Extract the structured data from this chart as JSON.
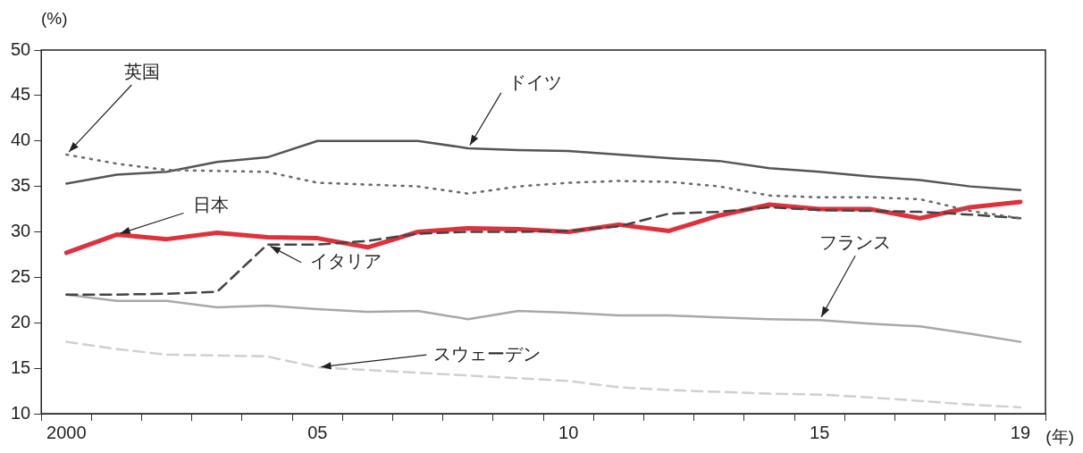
{
  "chart_data": {
    "type": "line",
    "ylabel": "(%)",
    "xlabel": "(年)",
    "categories": [
      "2000",
      null,
      null,
      null,
      null,
      "05",
      null,
      null,
      null,
      null,
      "10",
      null,
      null,
      null,
      null,
      "15",
      null,
      null,
      null,
      "19"
    ],
    "ylim": [
      10,
      50
    ],
    "yticks": [
      10,
      15,
      20,
      25,
      30,
      35,
      40,
      45,
      50
    ],
    "grid": false,
    "legend": false,
    "marker": "none",
    "series": [
      {
        "name": "英国",
        "color": "#6a6a6a",
        "line_style": "dotted",
        "values": [
          38.5,
          37.5,
          36.8,
          36.7,
          36.6,
          35.4,
          35.2,
          35.0,
          34.2,
          35.0,
          35.4,
          35.6,
          35.5,
          35.0,
          34.0,
          33.8,
          33.8,
          33.6,
          32.3,
          31.5
        ]
      },
      {
        "name": "ドイツ",
        "color": "#555555",
        "line_style": "solid",
        "values": [
          35.3,
          36.3,
          36.6,
          37.7,
          38.2,
          40.0,
          40.0,
          40.0,
          39.2,
          39.0,
          38.9,
          38.5,
          38.1,
          37.8,
          37.0,
          36.6,
          36.1,
          35.7,
          35.0,
          34.6
        ]
      },
      {
        "name": "日本",
        "color": "#e0303c",
        "line_style": "solid",
        "values": [
          27.7,
          29.7,
          29.2,
          29.9,
          29.4,
          29.3,
          28.3,
          30.0,
          30.4,
          30.3,
          30.0,
          30.8,
          30.1,
          31.8,
          33.0,
          32.5,
          32.5,
          31.5,
          32.7,
          33.3
        ]
      },
      {
        "name": "イタリア",
        "color": "#444444",
        "line_style": "dashed",
        "values": [
          23.1,
          23.1,
          23.2,
          23.4,
          28.6,
          28.6,
          29.0,
          29.8,
          30.0,
          30.0,
          30.1,
          30.6,
          32.0,
          32.2,
          32.7,
          32.4,
          32.3,
          32.2,
          31.9,
          31.5
        ]
      },
      {
        "name": "フランス",
        "color": "#a8a8a8",
        "line_style": "solid",
        "values": [
          23.1,
          22.4,
          22.4,
          21.7,
          21.9,
          21.5,
          21.2,
          21.3,
          20.4,
          21.3,
          21.1,
          20.8,
          20.8,
          20.6,
          20.4,
          20.3,
          19.9,
          19.6,
          18.8,
          17.9
        ]
      },
      {
        "name": "スウェーデン",
        "color": "#d0d0d0",
        "line_style": "dashed",
        "values": [
          17.9,
          17.1,
          16.5,
          16.4,
          16.3,
          15.1,
          14.8,
          14.5,
          14.2,
          13.9,
          13.6,
          12.9,
          12.6,
          12.4,
          12.2,
          12.1,
          11.8,
          11.4,
          11.0,
          10.7
        ]
      }
    ]
  }
}
